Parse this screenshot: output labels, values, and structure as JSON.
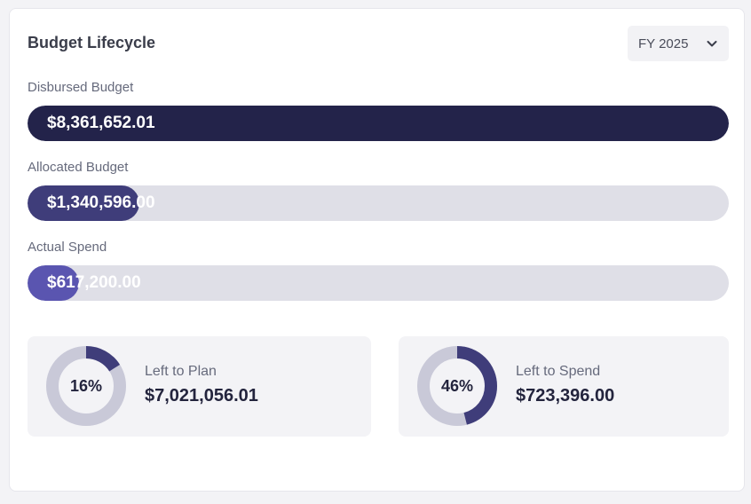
{
  "header": {
    "title": "Budget Lifecycle",
    "year_select": {
      "value": "FY 2025",
      "icon": "chevron-down-icon"
    }
  },
  "bars": [
    {
      "label": "Disbursed Budget",
      "amount": "$8,361,652.01",
      "fill_fraction": 1.0,
      "color": "#23234a"
    },
    {
      "label": "Allocated Budget",
      "amount": "$1,340,596.00",
      "fill_fraction": 0.16,
      "color": "#3f3d7a"
    },
    {
      "label": "Actual Spend",
      "amount": "$617,200.00",
      "fill_fraction": 0.074,
      "color": "#5a55b0"
    }
  ],
  "stats": [
    {
      "percent_label": "16%",
      "percent": 16,
      "label": "Left to Plan",
      "value": "$7,021,056.01",
      "color": "#3f3d7a",
      "track_color": "#c9c9d8"
    },
    {
      "percent_label": "46%",
      "percent": 46,
      "label": "Left to Spend",
      "value": "$723,396.00",
      "color": "#3f3d7a",
      "track_color": "#c9c9d8"
    }
  ]
}
